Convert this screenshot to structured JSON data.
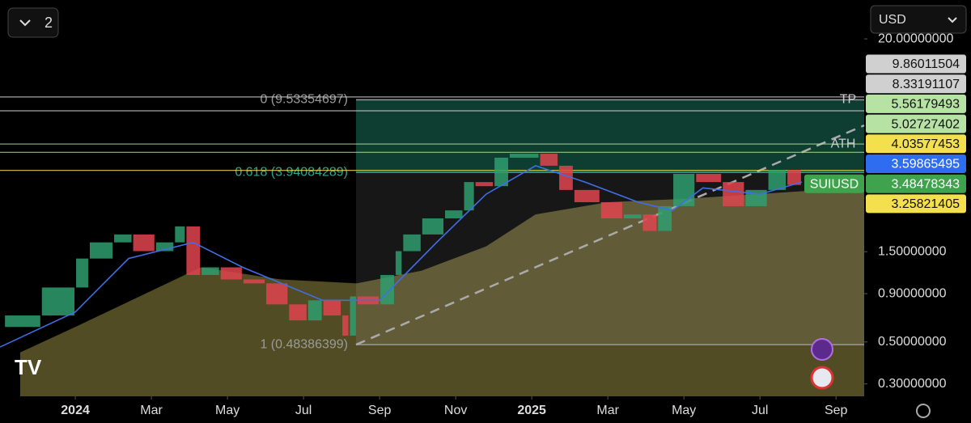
{
  "header": {
    "layout_count": "2",
    "currency": "USD"
  },
  "chart_data": {
    "type": "candlestick",
    "symbol": "SUIUSD",
    "log_scale": true,
    "xlim": [
      -1.98,
      20.74
    ],
    "ylim": [
      0.258,
      32.1
    ],
    "xticks": [
      {
        "value": 0,
        "label": "2024"
      },
      {
        "value": 2,
        "label": "Mar"
      },
      {
        "value": 4,
        "label": "May"
      },
      {
        "value": 6,
        "label": "Jul"
      },
      {
        "value": 8,
        "label": "Sep"
      },
      {
        "value": 10,
        "label": "Nov"
      },
      {
        "value": 12,
        "label": "2025"
      },
      {
        "value": 14,
        "label": "Mar"
      },
      {
        "value": 16,
        "label": "May"
      },
      {
        "value": 18,
        "label": "Jul"
      },
      {
        "value": 20,
        "label": "Sep"
      }
    ],
    "yticks": [
      {
        "value": 20,
        "label": "20.00000000"
      },
      {
        "value": 1.5,
        "label": "1.50000000"
      },
      {
        "value": 0.9,
        "label": "0.90000000"
      },
      {
        "value": 0.5,
        "label": "0.50000000"
      },
      {
        "value": 0.3,
        "label": "0.30000000"
      }
    ],
    "x": [
      -1.87,
      -0.9,
      0,
      0.36,
      1,
      1.5,
      2.1,
      2.6,
      2.9,
      3.3,
      3.8,
      4.4,
      5.0,
      5.6,
      6.1,
      6.5,
      7.0,
      7.2,
      7.4,
      8.0,
      8.4,
      8.6,
      9.1,
      9.7,
      10.2,
      10.5,
      11.0,
      11.4,
      12.2,
      12.7,
      13.1,
      13.8,
      14.4,
      14.9,
      15.3,
      15.7,
      16.3,
      17.0,
      17.6,
      18.2,
      18.7,
      19.1
    ],
    "values": [
      0.6,
      0.69,
      0.97,
      1.38,
      1.68,
      1.85,
      1.51,
      1.68,
      2.04,
      1.13,
      1.24,
      1.07,
      1.02,
      0.79,
      0.65,
      0.83,
      0.69,
      0.54,
      0.87,
      0.79,
      1.13,
      1.51,
      1.85,
      2.25,
      2.48,
      3.5,
      3.33,
      4.71,
      4.94,
      4.27,
      3.18,
      2.74,
      2.25,
      2.36,
      1.93,
      2.61,
      3.87,
      3.5,
      2.61,
      3.18,
      4.06,
      3.38
    ],
    "up_color": "#2f9e70",
    "down_color": "#e0444f",
    "ma": {
      "color": "#3f6fe6",
      "x": [
        -1.98,
        0,
        1.4,
        3.1,
        4.4,
        6.5,
        8.0,
        9.5,
        10.8,
        12.1,
        13.4,
        14.8,
        15.7,
        16.5,
        18.0,
        19.1
      ],
      "values": [
        0.47,
        0.72,
        1.38,
        1.68,
        1.24,
        0.83,
        0.83,
        1.68,
        3.02,
        4.27,
        3.5,
        2.74,
        2.48,
        3.26,
        3.02,
        3.5
      ]
    },
    "long_ma": {
      "color": "#6e6530",
      "x": [
        -1.45,
        0,
        3.3,
        5.4,
        7.4,
        9.1,
        10.8,
        12.1,
        14.0,
        16.1,
        19.6
      ],
      "values": [
        0.44,
        0.6,
        1.24,
        1.07,
        1.02,
        1.19,
        1.6,
        2.36,
        2.74,
        2.86,
        3.18
      ]
    },
    "fib": {
      "x_start": 7.38,
      "target_label": "TP",
      "levels": [
        {
          "value": 9.53354697,
          "label": "0 (9.53354697)",
          "color": "#9a9a9a"
        },
        {
          "value": 3.94084289,
          "label": "0.618 (3.94084289)",
          "color": "#2fa88a"
        },
        {
          "value": 0.48386399,
          "label": "1 (0.48386399)",
          "color": "#9a9a9a"
        }
      ]
    },
    "levels": [
      {
        "value": 9.86011504,
        "color": "#d0d0d0",
        "line": true
      },
      {
        "value": 8.33191107,
        "color": "#d0d0d0",
        "line": true
      },
      {
        "value": 5.56179493,
        "color": "#b6e3a4",
        "line": true,
        "name": "ATH"
      },
      {
        "value": 5.02727402,
        "color": "#b6e3a4",
        "line": true
      },
      {
        "value": 4.03577453,
        "color": "#f4e04d",
        "line": true
      },
      {
        "value": 3.59865495,
        "color": "#2f6df0"
      },
      {
        "value": 3.48478343,
        "color": "#3fa34d",
        "name": "SUIUSD"
      },
      {
        "value": 3.25821405,
        "color": "#f4e04d"
      }
    ]
  }
}
